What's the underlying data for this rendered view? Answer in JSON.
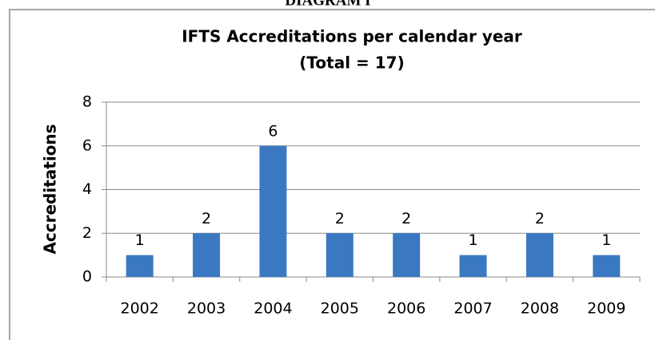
{
  "header": "DIAGRAM I",
  "chart_data": {
    "type": "bar",
    "title": "IFTS Accreditations per calendar year",
    "subtitle": "(Total = 17)",
    "y_label": "Accreditations",
    "categories": [
      "2002",
      "2003",
      "2004",
      "2005",
      "2006",
      "2007",
      "2008",
      "2009"
    ],
    "values": [
      1,
      2,
      6,
      2,
      2,
      1,
      2,
      1
    ],
    "color": "#3b78c2",
    "ylim": [
      0,
      8
    ],
    "yticks": [
      0,
      2,
      4,
      6,
      8
    ],
    "grid": true
  }
}
